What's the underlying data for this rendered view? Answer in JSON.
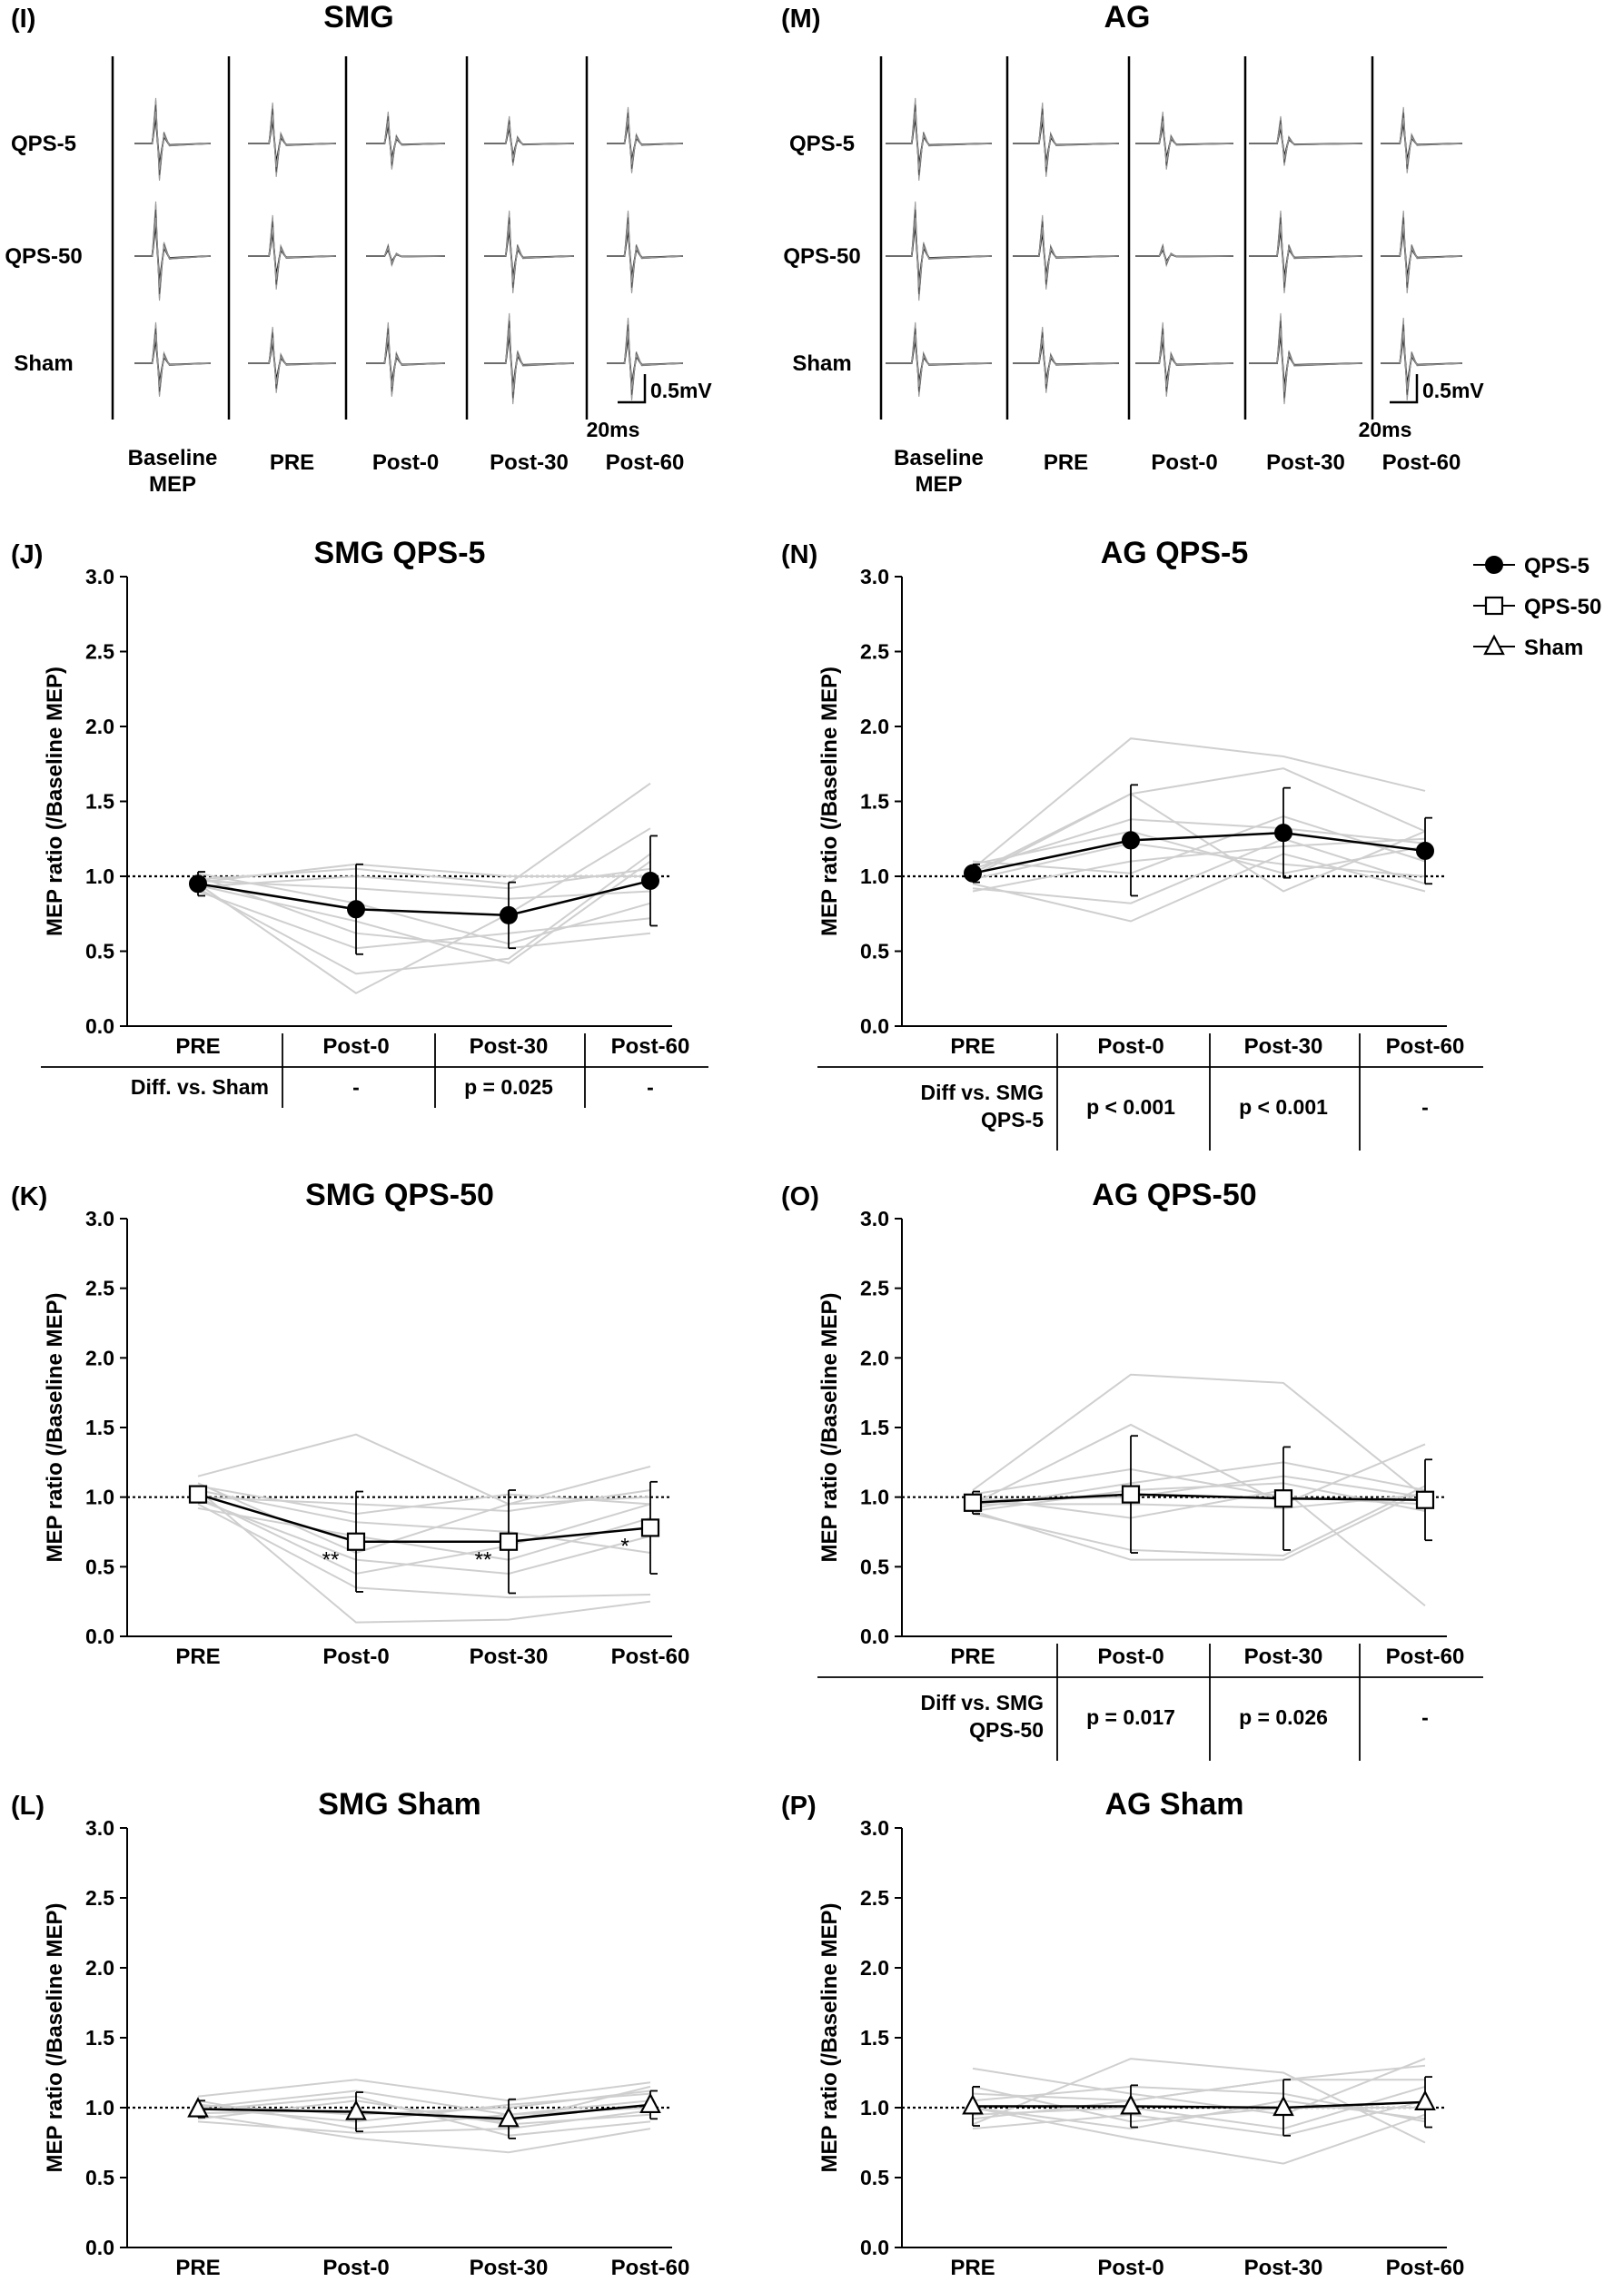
{
  "traces": [
    {
      "label": "(I)",
      "title": "SMG",
      "rows": [
        "QPS-5",
        "QPS-50",
        "Sham"
      ],
      "columns": [
        "Baseline\nMEP",
        "PRE",
        "Post-0",
        "Post-30",
        "Post-60"
      ],
      "scale_mv": "0.5mV",
      "scale_ms": "20ms"
    },
    {
      "label": "(M)",
      "title": "AG",
      "rows": [
        "QPS-5",
        "QPS-50",
        "Sham"
      ],
      "columns": [
        "Baseline\nMEP",
        "PRE",
        "Post-0",
        "Post-30",
        "Post-60"
      ],
      "scale_mv": "0.5mV",
      "scale_ms": "20ms"
    }
  ],
  "legend": {
    "colors": {
      "mean": "#000000",
      "individual": "#cfcfcf"
    },
    "items": [
      {
        "name": "QPS-5",
        "marker": "circle"
      },
      {
        "name": "QPS-50",
        "marker": "square"
      },
      {
        "name": "Sham",
        "marker": "triangle"
      }
    ]
  },
  "chart_data": [
    {
      "id": "J",
      "label": "(J)",
      "title": "SMG   QPS-5",
      "type": "line",
      "marker": "circle",
      "categories": [
        "PRE",
        "Post-0",
        "Post-30",
        "Post-60"
      ],
      "ylabel": "MEP ratio (/Baseline MEP)",
      "ylim": [
        0,
        3
      ],
      "yticks": [
        "0.0",
        "0.5",
        "1.0",
        "1.5",
        "2.0",
        "2.5",
        "3.0"
      ],
      "reference_line": 1.0,
      "mean": [
        0.95,
        0.78,
        0.74,
        0.97
      ],
      "error": [
        0.08,
        0.3,
        0.22,
        0.3
      ],
      "individual": [
        [
          0.98,
          1.05,
          0.95,
          1.62
        ],
        [
          0.95,
          0.22,
          0.75,
          1.32
        ],
        [
          0.92,
          0.35,
          0.45,
          1.15
        ],
        [
          1.0,
          0.62,
          0.52,
          0.62
        ],
        [
          0.93,
          1.0,
          0.92,
          1.05
        ],
        [
          0.97,
          0.92,
          0.85,
          0.9
        ],
        [
          0.9,
          0.52,
          0.62,
          0.72
        ],
        [
          0.96,
          1.08,
          1.0,
          1.0
        ],
        [
          1.02,
          0.82,
          0.55,
          0.82
        ],
        [
          0.94,
          0.7,
          0.42,
          1.1
        ]
      ],
      "annotations": [],
      "table": {
        "header": "Diff. vs. Sham",
        "values": [
          "-",
          "p = 0.025",
          "-"
        ]
      }
    },
    {
      "id": "N",
      "label": "(N)",
      "title": "AG   QPS-5",
      "type": "line",
      "marker": "circle",
      "categories": [
        "PRE",
        "Post-0",
        "Post-30",
        "Post-60"
      ],
      "ylabel": "MEP ratio (/Baseline MEP)",
      "ylim": [
        0,
        3
      ],
      "yticks": [
        "0.0",
        "0.5",
        "1.0",
        "1.5",
        "2.0",
        "2.5",
        "3.0"
      ],
      "reference_line": 1.0,
      "mean": [
        1.02,
        1.24,
        1.29,
        1.17
      ],
      "error": [
        0.06,
        0.37,
        0.3,
        0.22
      ],
      "individual": [
        [
          1.05,
          1.92,
          1.8,
          1.57
        ],
        [
          1.0,
          1.55,
          1.72,
          1.3
        ],
        [
          0.95,
          0.7,
          1.15,
          0.9
        ],
        [
          1.08,
          1.3,
          1.02,
          1.2
        ],
        [
          0.92,
          0.82,
          1.25,
          0.95
        ],
        [
          1.02,
          1.55,
          0.9,
          1.3
        ],
        [
          1.1,
          1.02,
          1.4,
          1.1
        ],
        [
          0.98,
          1.22,
          1.08,
          1.0
        ],
        [
          1.05,
          1.38,
          1.32,
          1.22
        ],
        [
          0.9,
          1.1,
          1.2,
          1.25
        ]
      ],
      "annotations": [],
      "table": {
        "header": "Diff vs. SMG\nQPS-5",
        "values": [
          "p < 0.001",
          "p < 0.001",
          "-"
        ]
      }
    },
    {
      "id": "K",
      "label": "(K)",
      "title": "SMG   QPS-50",
      "type": "line",
      "marker": "square",
      "categories": [
        "PRE",
        "Post-0",
        "Post-30",
        "Post-60"
      ],
      "ylabel": "MEP ratio (/Baseline MEP)",
      "ylim": [
        0,
        3
      ],
      "yticks": [
        "0.0",
        "0.5",
        "1.0",
        "1.5",
        "2.0",
        "2.5",
        "3.0"
      ],
      "reference_line": 1.0,
      "mean": [
        1.02,
        0.68,
        0.68,
        0.78
      ],
      "error": [
        0.06,
        0.36,
        0.37,
        0.33
      ],
      "individual": [
        [
          1.15,
          1.45,
          0.95,
          1.22
        ],
        [
          1.05,
          0.1,
          0.12,
          0.25
        ],
        [
          0.95,
          0.35,
          0.28,
          0.3
        ],
        [
          1.0,
          0.95,
          0.9,
          1.05
        ],
        [
          1.08,
          0.88,
          1.02,
          0.95
        ],
        [
          0.98,
          0.55,
          0.45,
          0.72
        ],
        [
          1.1,
          0.6,
          0.95,
          1.0
        ],
        [
          0.92,
          0.72,
          0.55,
          0.85
        ],
        [
          1.05,
          0.82,
          0.75,
          0.6
        ],
        [
          1.0,
          0.45,
          0.65,
          0.95
        ]
      ],
      "annotations": [
        {
          "x": "Post-0",
          "text": "**"
        },
        {
          "x": "Post-30",
          "text": "**"
        },
        {
          "x": "Post-60",
          "text": "*"
        }
      ],
      "table": null
    },
    {
      "id": "O",
      "label": "(O)",
      "title": "AG   QPS-50",
      "type": "line",
      "marker": "square",
      "categories": [
        "PRE",
        "Post-0",
        "Post-30",
        "Post-60"
      ],
      "ylabel": "MEP ratio (/Baseline MEP)",
      "ylim": [
        0,
        3
      ],
      "yticks": [
        "0.0",
        "0.5",
        "1.0",
        "1.5",
        "2.0",
        "2.5",
        "3.0"
      ],
      "reference_line": 1.0,
      "mean": [
        0.96,
        1.02,
        0.99,
        0.98
      ],
      "error": [
        0.08,
        0.42,
        0.37,
        0.29
      ],
      "individual": [
        [
          1.05,
          1.88,
          1.82,
          1.0
        ],
        [
          0.95,
          1.52,
          0.95,
          1.38
        ],
        [
          0.9,
          0.55,
          0.55,
          1.05
        ],
        [
          1.0,
          0.85,
          1.05,
          0.22
        ],
        [
          0.92,
          1.1,
          1.25,
          1.05
        ],
        [
          0.98,
          1.0,
          1.15,
          1.0
        ],
        [
          0.88,
          0.62,
          0.58,
          1.08
        ],
        [
          1.02,
          1.2,
          1.0,
          0.95
        ],
        [
          0.95,
          0.95,
          0.92,
          1.02
        ],
        [
          0.9,
          1.05,
          1.1,
          0.9
        ]
      ],
      "annotations": [],
      "table": {
        "header": "Diff vs. SMG\nQPS-50",
        "values": [
          "p = 0.017",
          "p = 0.026",
          "-"
        ]
      }
    },
    {
      "id": "L",
      "label": "(L)",
      "title": "SMG   Sham",
      "type": "line",
      "marker": "triangle",
      "categories": [
        "PRE",
        "Post-0",
        "Post-30",
        "Post-60"
      ],
      "ylabel": "MEP ratio (/Baseline MEP)",
      "ylim": [
        0,
        3
      ],
      "yticks": [
        "0.0",
        "0.5",
        "1.0",
        "1.5",
        "2.0",
        "2.5",
        "3.0"
      ],
      "reference_line": 1.0,
      "mean": [
        0.99,
        0.97,
        0.92,
        1.02
      ],
      "error": [
        0.06,
        0.14,
        0.14,
        0.1
      ],
      "individual": [
        [
          1.08,
          1.2,
          1.05,
          1.18
        ],
        [
          0.95,
          0.78,
          0.68,
          0.85
        ],
        [
          1.0,
          0.9,
          1.02,
          1.1
        ],
        [
          0.92,
          1.05,
          0.88,
          0.95
        ],
        [
          1.05,
          0.85,
          0.95,
          1.05
        ],
        [
          0.98,
          1.08,
          0.8,
          0.9
        ],
        [
          1.02,
          0.95,
          1.0,
          1.12
        ],
        [
          0.9,
          0.82,
          0.85,
          0.98
        ],
        [
          1.0,
          1.12,
          0.95,
          1.0
        ],
        [
          0.96,
          0.98,
          0.9,
          1.15
        ]
      ],
      "annotations": [],
      "table": null
    },
    {
      "id": "P",
      "label": "(P)",
      "title": "AG   Sham",
      "type": "line",
      "marker": "triangle",
      "categories": [
        "PRE",
        "Post-0",
        "Post-30",
        "Post-60"
      ],
      "ylabel": "MEP ratio (/Baseline MEP)",
      "ylim": [
        0,
        3
      ],
      "yticks": [
        "0.0",
        "0.5",
        "1.0",
        "1.5",
        "2.0",
        "2.5",
        "3.0"
      ],
      "reference_line": 1.0,
      "mean": [
        1.01,
        1.01,
        1.0,
        1.04
      ],
      "error": [
        0.14,
        0.15,
        0.2,
        0.18
      ],
      "individual": [
        [
          1.28,
          1.1,
          0.95,
          1.35
        ],
        [
          0.88,
          1.35,
          1.25,
          0.75
        ],
        [
          1.0,
          0.78,
          0.6,
          0.95
        ],
        [
          0.92,
          1.05,
          1.2,
          1.3
        ],
        [
          1.15,
          0.9,
          1.0,
          1.0
        ],
        [
          0.95,
          1.0,
          0.85,
          1.15
        ],
        [
          1.05,
          1.15,
          1.1,
          0.9
        ],
        [
          0.85,
          0.95,
          0.8,
          1.05
        ],
        [
          1.1,
          1.05,
          1.2,
          1.2
        ],
        [
          1.0,
          0.85,
          1.05,
          0.92
        ]
      ],
      "annotations": [],
      "table": null
    }
  ]
}
